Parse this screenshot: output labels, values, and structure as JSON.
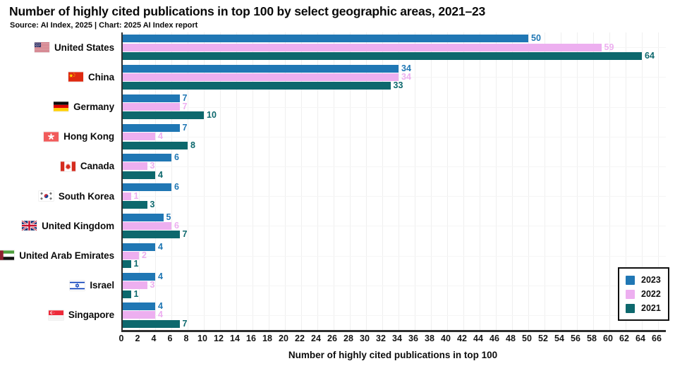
{
  "header": {
    "title": "Number of highly cited publications in top 100 by select geographic areas, 2021–23",
    "source": "Source: AI Index, 2025 | Chart: 2025 AI Index report"
  },
  "chart_data": {
    "type": "bar",
    "orientation": "horizontal",
    "title": "Number of highly cited publications in top 100 by select geographic areas, 2021–23",
    "source_note": "Source: AI Index, 2025 | Chart: 2025 AI Index report",
    "categories": [
      "United States",
      "China",
      "Germany",
      "Hong Kong",
      "Canada",
      "South Korea",
      "United Kingdom",
      "United Arab Emirates",
      "Israel",
      "Singapore"
    ],
    "flags": [
      "us",
      "cn",
      "de",
      "hk",
      "ca",
      "kr",
      "gb",
      "ae",
      "il",
      "sg"
    ],
    "series": [
      {
        "name": "2023",
        "color": "#2077b4",
        "values": [
          50,
          34,
          7,
          7,
          6,
          6,
          5,
          4,
          4,
          4
        ]
      },
      {
        "name": "2022",
        "color": "#edaff0",
        "values": [
          59,
          34,
          7,
          4,
          3,
          1,
          6,
          2,
          3,
          4
        ]
      },
      {
        "name": "2021",
        "color": "#0d686d",
        "values": [
          64,
          33,
          10,
          8,
          4,
          3,
          7,
          1,
          1,
          7
        ]
      }
    ],
    "xlabel": "Number of highly cited publications in top 100",
    "xlim": [
      0,
      66
    ],
    "x_tick_step": 2,
    "grid": true,
    "legend_position": "bottom-right",
    "legend_entries": [
      "2023",
      "2022",
      "2021"
    ],
    "axis_color": "#2e2e2e",
    "grid_color": "#efefef"
  }
}
